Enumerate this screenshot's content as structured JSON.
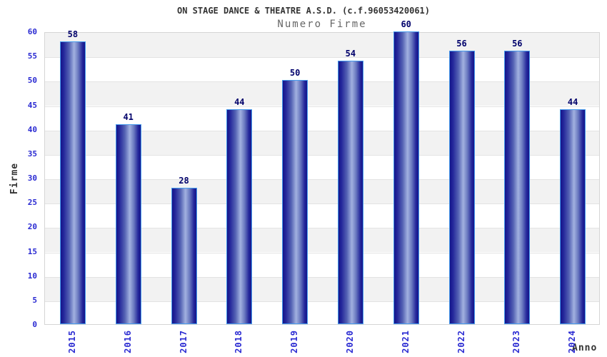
{
  "chart_data": {
    "type": "bar",
    "title": "ON STAGE DANCE & THEATRE A.S.D. (c.f.96053420061)",
    "subtitle": "Numero Firme",
    "xlabel": "Anno",
    "ylabel": "Firme",
    "categories": [
      "2015",
      "2016",
      "2017",
      "2018",
      "2019",
      "2020",
      "2021",
      "2022",
      "2023",
      "2024"
    ],
    "values": [
      58,
      41,
      28,
      44,
      50,
      54,
      60,
      56,
      56,
      44
    ],
    "ylim": [
      0,
      60
    ],
    "yticks": [
      0,
      5,
      10,
      15,
      20,
      25,
      30,
      35,
      40,
      45,
      50,
      55,
      60
    ],
    "grid": "horizontal alternating bands every 5 units",
    "legend": "none",
    "bar_value_labels_shown": true
  },
  "colors": {
    "title": "#333333",
    "subtitle": "#666666",
    "tick_label": "#2a2ad2",
    "value_label": "#00006b",
    "axis_title": "#333333",
    "band_gray": "#f2f2f2",
    "band_white": "#ffffff",
    "grid_line": "#e3e3e3",
    "plot_border": "#d5d5d5",
    "bar_stroke": "#459aec",
    "bar_edge": "#15158a",
    "bar_mid": "#5563b4",
    "bar_highlight": "#a2b1e0"
  }
}
